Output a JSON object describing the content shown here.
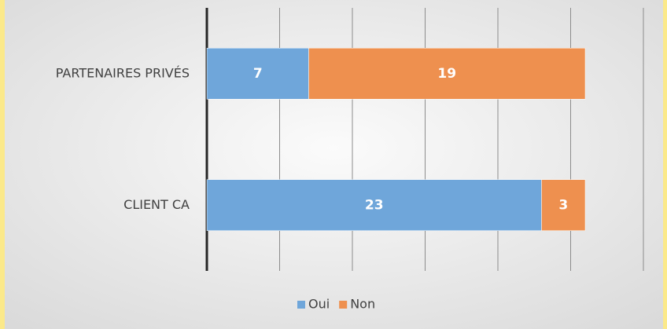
{
  "chart_data": {
    "type": "stacked_barh",
    "categories": [
      "PARTENAIRES PRIVÉS",
      "CLIENT CA"
    ],
    "series": [
      {
        "name": "Oui",
        "color": "#6fa6da",
        "values": [
          7,
          23
        ]
      },
      {
        "name": "Non",
        "color": "#ee904f",
        "values": [
          19,
          3
        ]
      }
    ],
    "xlim": [
      0,
      30
    ],
    "xticks": [
      0,
      5,
      10,
      15,
      20,
      25,
      30
    ],
    "grid": true,
    "legend": "bottom"
  }
}
